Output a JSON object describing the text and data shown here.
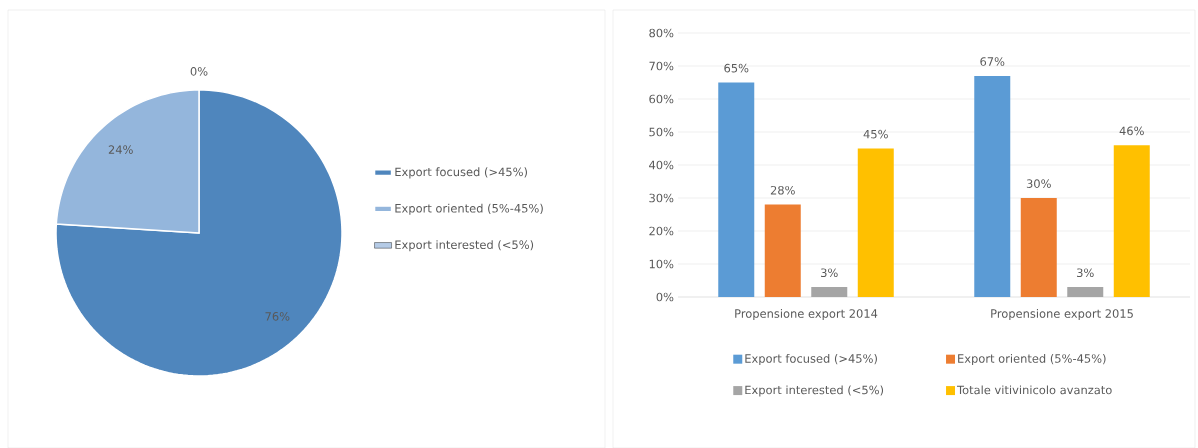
{
  "chart_data": [
    {
      "type": "pie",
      "categories": [
        "Export focused (>45%)",
        "Export oriented (5%-45%)",
        "Export interested (<5%)"
      ],
      "values": [
        76,
        24,
        0
      ],
      "colors": [
        "#4f86bd",
        "#94b6dc",
        "#b5cbe6"
      ],
      "value_labels": [
        "76%",
        "24%",
        "0%"
      ],
      "legend": "right"
    },
    {
      "type": "bar",
      "categories": [
        "Propensione export 2014",
        "Propensione export 2015"
      ],
      "series": [
        {
          "name": "Export focused (>45%)",
          "color": "#5b9bd5",
          "values": [
            65,
            67
          ],
          "value_labels": [
            "65%",
            "67%"
          ]
        },
        {
          "name": "Export oriented (5%-45%)",
          "color": "#ed7d31",
          "values": [
            28,
            30
          ],
          "value_labels": [
            "28%",
            "30%"
          ]
        },
        {
          "name": "Export interested (<5%)",
          "color": "#a5a5a5",
          "values": [
            3,
            3
          ],
          "value_labels": [
            "3%",
            "3%"
          ]
        },
        {
          "name": "Totale vitivinicolo avanzato",
          "color": "#ffc000",
          "values": [
            45,
            46
          ],
          "value_labels": [
            "45%",
            "46%"
          ]
        }
      ],
      "ylim": [
        0,
        80
      ],
      "yticks": [
        {
          "value": 0,
          "label": "0%"
        },
        {
          "value": 10,
          "label": "10%"
        },
        {
          "value": 20,
          "label": "20%"
        },
        {
          "value": 30,
          "label": "30%"
        },
        {
          "value": 40,
          "label": "40%"
        },
        {
          "value": 50,
          "label": "50%"
        },
        {
          "value": 60,
          "label": "60%"
        },
        {
          "value": 70,
          "label": "70%"
        },
        {
          "value": 80,
          "label": "80%"
        }
      ],
      "grid": "y",
      "legend": "bottom"
    }
  ]
}
